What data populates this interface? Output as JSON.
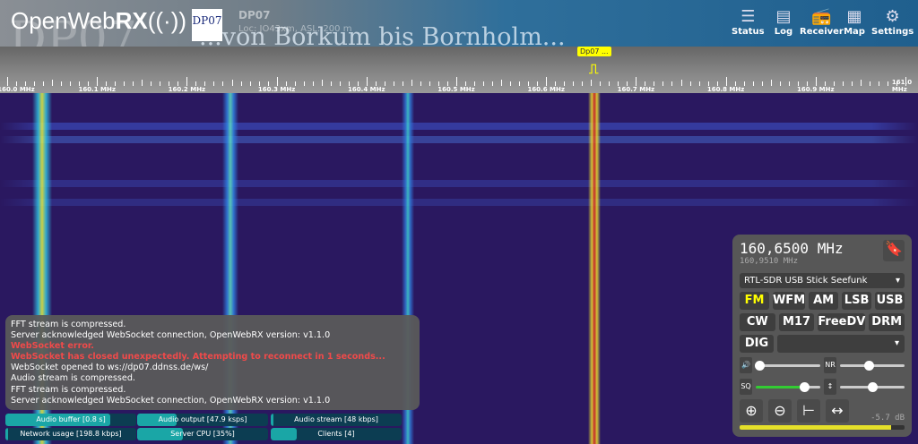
{
  "header": {
    "logo_light": "OpenWeb",
    "logo_bold": "RX",
    "logo_icon": "radio-waves-icon",
    "badge": "DP07",
    "receiver_name": "DP07",
    "receiver_location": "Loc: JO43xm, ASL: 200 m",
    "slogan": "...von Borkum bis Bornholm...",
    "nav": [
      {
        "label": "Status",
        "icon": "status-icon"
      },
      {
        "label": "Log",
        "icon": "log-icon"
      },
      {
        "label": "Receiver",
        "icon": "receiver-icon"
      },
      {
        "label": "Map",
        "icon": "map-icon"
      },
      {
        "label": "Settings",
        "icon": "gear-icon"
      }
    ]
  },
  "scale": {
    "labels": [
      "160.0 MHz",
      "160.1 MHz",
      "160.2 MHz",
      "160.3 MHz",
      "160.4 MHz",
      "160.5 MHz",
      "160.6 MHz",
      "160.7 MHz",
      "160.8 MHz",
      "160.9 MHz",
      "161.0 MHz"
    ],
    "bookmark": "Dp07 ..."
  },
  "panel": {
    "frequency": "160,6500 MHz",
    "offset_frequency": "160,9510 MHz",
    "profile": "RTL-SDR USB Stick Seefunk",
    "modes_row1": [
      "FM",
      "WFM",
      "AM",
      "LSB",
      "USB"
    ],
    "modes_row2": [
      "CW",
      "M17",
      "FreeDV",
      "DRM"
    ],
    "mode_dig": "DIG",
    "selected_mode": "FM",
    "digital_mode_select": "",
    "volume_level": 0.05,
    "nr_level": 0.45,
    "squelch_level": 0.75,
    "squelch_label": "SQ",
    "gain_level": 0.5,
    "db_readout": "-5.7 dB",
    "signal_level": 0.92,
    "accent": "#e5e02a"
  },
  "log": [
    {
      "text": "FFT stream is compressed.",
      "error": false
    },
    {
      "text": "Server acknowledged WebSocket connection, OpenWebRX version: v1.1.0",
      "error": false
    },
    {
      "text": "WebSocket error.",
      "error": true
    },
    {
      "text": "WebSocket has closed unexpectedly. Attempting to reconnect in 1 seconds...",
      "error": true
    },
    {
      "text": "WebSocket opened to ws://dp07.ddnss.de/ws/",
      "error": false
    },
    {
      "text": "Audio stream is compressed.",
      "error": false
    },
    {
      "text": "FFT stream is compressed.",
      "error": false
    },
    {
      "text": "Server acknowledged WebSocket connection, OpenWebRX version: v1.1.0",
      "error": false
    }
  ],
  "status": [
    {
      "label": "Audio buffer [0.8 s]",
      "fill": 0.8
    },
    {
      "label": "Audio output [47.9 ksps]",
      "fill": 0.3
    },
    {
      "label": "Audio stream [48 kbps]",
      "fill": 0.02
    },
    {
      "label": "Network usage [198.8 kbps]",
      "fill": 0.02
    },
    {
      "label": "Server CPU [35%]",
      "fill": 0.35
    },
    {
      "label": "Clients [4]",
      "fill": 0.2
    }
  ]
}
